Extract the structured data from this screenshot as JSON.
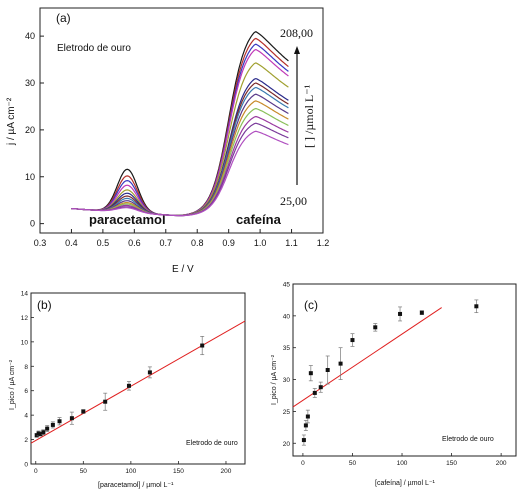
{
  "chart_data": [
    {
      "panel": "(a)",
      "type": "line",
      "title": "",
      "xlabel": "E / V",
      "ylabel": "j / µA cm⁻²",
      "xlim": [
        0.3,
        1.2
      ],
      "ylim": [
        -2,
        46
      ],
      "xticks": [
        "0.3",
        "0.4",
        "0.5",
        "0.6",
        "0.7",
        "0.8",
        "0.9",
        "1.0",
        "1.1",
        "1.2"
      ],
      "yticks": [
        "0",
        "10",
        "20",
        "30",
        "40"
      ],
      "annotation": "Eletrodo de ouro",
      "label_left": "paracetamol",
      "label_right": "cafeína",
      "conc_top": "208,00",
      "conc_bottom": "25,00",
      "conc_axis": "[ ] /µmol L⁻¹",
      "series": [
        {
          "color": "#1a1a1a",
          "para_peak": 11.0,
          "caf_peak": 43.0
        },
        {
          "color": "#b5302a",
          "para_peak": 9.6,
          "caf_peak": 41.5
        },
        {
          "color": "#3838c0",
          "para_peak": 8.6,
          "caf_peak": 40.2
        },
        {
          "color": "#c03ab8",
          "para_peak": 7.6,
          "caf_peak": 39.0
        },
        {
          "color": "#a0a030",
          "para_peak": 6.6,
          "caf_peak": 36.0
        },
        {
          "color": "#2a2a8a",
          "para_peak": 5.9,
          "caf_peak": 32.5
        },
        {
          "color": "#7a2a2a",
          "para_peak": 5.3,
          "caf_peak": 31.5
        },
        {
          "color": "#3a7ab0",
          "para_peak": 4.8,
          "caf_peak": 30.5
        },
        {
          "color": "#5a3a8a",
          "para_peak": 4.3,
          "caf_peak": 29.0
        },
        {
          "color": "#c88a2a",
          "para_peak": 3.9,
          "caf_peak": 27.5
        },
        {
          "color": "#8ac05a",
          "para_peak": 3.6,
          "caf_peak": 25.8
        },
        {
          "color": "#9a3aa0",
          "para_peak": 3.3,
          "caf_peak": 24.0
        },
        {
          "color": "#7a3a9a",
          "para_peak": 3.0,
          "caf_peak": 22.5
        },
        {
          "color": "#b050c0",
          "para_peak": 2.8,
          "caf_peak": 20.7
        }
      ]
    },
    {
      "panel": "(b)",
      "type": "scatter",
      "xlabel": "[paracetamol] / µmol L⁻¹",
      "ylabel": "I_pico / µA cm⁻²",
      "xlim": [
        -5,
        220
      ],
      "ylim": [
        0,
        14
      ],
      "xticks": [
        "0",
        "50",
        "100",
        "150",
        "200"
      ],
      "yticks": [
        "0",
        "2",
        "4",
        "6",
        "8",
        "10",
        "12",
        "14"
      ],
      "annotation": "Eletrodo de ouro",
      "fit": {
        "color": "#e02020",
        "x": [
          -5,
          220
        ],
        "y": [
          1.7,
          11.7
        ]
      },
      "points": [
        {
          "x": 1,
          "y": 2.35,
          "err": 0.15
        },
        {
          "x": 3,
          "y": 2.5,
          "err": 0.2
        },
        {
          "x": 5,
          "y": 2.45,
          "err": 0.15
        },
        {
          "x": 8,
          "y": 2.6,
          "err": 0.2
        },
        {
          "x": 12,
          "y": 2.9,
          "err": 0.25
        },
        {
          "x": 18,
          "y": 3.2,
          "err": 0.25
        },
        {
          "x": 25,
          "y": 3.5,
          "err": 0.3
        },
        {
          "x": 38,
          "y": 3.75,
          "err": 0.5
        },
        {
          "x": 50,
          "y": 4.3,
          "err": 0.15
        },
        {
          "x": 73,
          "y": 5.1,
          "err": 0.7
        },
        {
          "x": 98,
          "y": 6.4,
          "err": 0.35
        },
        {
          "x": 120,
          "y": 7.5,
          "err": 0.45
        },
        {
          "x": 175,
          "y": 9.7,
          "err": 0.75
        }
      ]
    },
    {
      "panel": "(c)",
      "type": "scatter",
      "xlabel": "[cafeína] / µmol L⁻¹",
      "ylabel": "I_pico / µA cm⁻²",
      "xlim": [
        -10,
        215
      ],
      "ylim": [
        18,
        45
      ],
      "xticks": [
        "0",
        "50",
        "100",
        "150",
        "200"
      ],
      "yticks": [
        "20",
        "25",
        "30",
        "35",
        "40",
        "45"
      ],
      "annotation": "Eletrodo de ouro",
      "fit": {
        "color": "#e02020",
        "x": [
          -10,
          140
        ],
        "y": [
          25.7,
          41.3
        ]
      },
      "points": [
        {
          "x": 1,
          "y": 20.5,
          "err": 0.8
        },
        {
          "x": 3,
          "y": 22.8,
          "err": 0.8
        },
        {
          "x": 5,
          "y": 24.2,
          "err": 1.0
        },
        {
          "x": 8,
          "y": 31.0,
          "err": 1.2
        },
        {
          "x": 12,
          "y": 27.9,
          "err": 0.7
        },
        {
          "x": 18,
          "y": 28.8,
          "err": 0.8
        },
        {
          "x": 25,
          "y": 31.5,
          "err": 2.2
        },
        {
          "x": 38,
          "y": 32.5,
          "err": 2.5
        },
        {
          "x": 50,
          "y": 36.2,
          "err": 1.0
        },
        {
          "x": 73,
          "y": 38.2,
          "err": 0.6
        },
        {
          "x": 98,
          "y": 40.3,
          "err": 1.1
        },
        {
          "x": 120,
          "y": 40.5,
          "err": 0.3
        },
        {
          "x": 175,
          "y": 41.5,
          "err": 1.0
        }
      ]
    }
  ]
}
